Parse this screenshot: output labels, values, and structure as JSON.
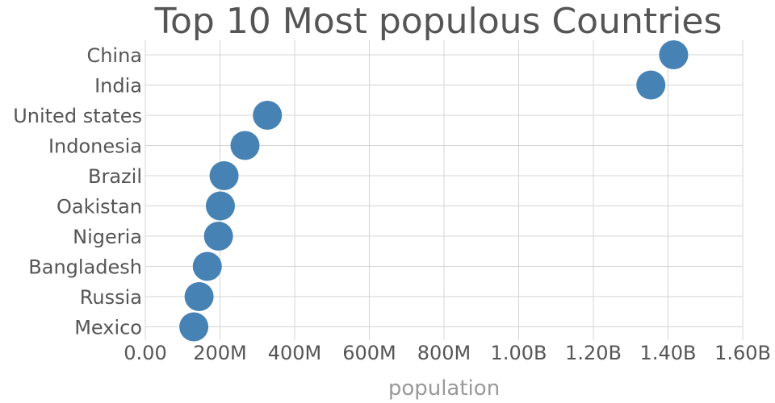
{
  "chart_data": {
    "type": "scatter",
    "title": "Top 10 Most populous Countries",
    "xlabel": "population",
    "ylabel": "",
    "xlim": [
      0,
      1600000000
    ],
    "x_ticks": [
      0,
      200000000,
      400000000,
      600000000,
      800000000,
      1000000000,
      1200000000,
      1400000000,
      1600000000
    ],
    "x_tick_labels": [
      "0.00",
      "200M",
      "400M",
      "600M",
      "800M",
      "1.00B",
      "1.20B",
      "1.40B",
      "1.60B"
    ],
    "categories": [
      "China",
      "India",
      "United states",
      "Indonesia",
      "Brazil",
      "Oakistan",
      "Nigeria",
      "Bangladesh",
      "Russia",
      "Mexico"
    ],
    "values": [
      1415000000,
      1354000000,
      327000000,
      267000000,
      211000000,
      201000000,
      196000000,
      166000000,
      144000000,
      130000000
    ],
    "marker_color": "#4682b4",
    "grid": true,
    "legend": "none"
  }
}
